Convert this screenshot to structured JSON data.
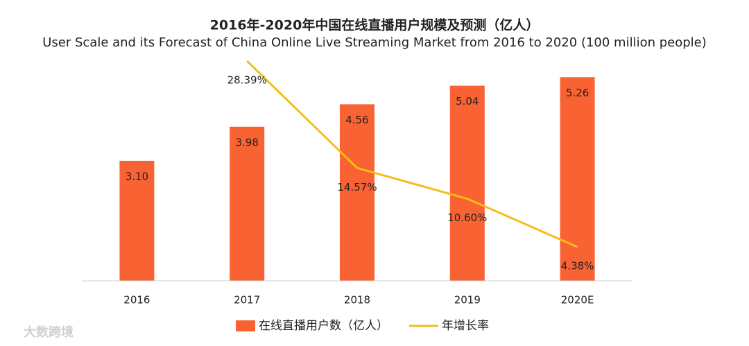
{
  "chart_data": {
    "type": "bar_line",
    "title": "2016年-2020年中国在线直播用户规模及预测（亿人）",
    "subtitle": "User Scale and its Forecast of China Online Live Streaming Market from 2016 to 2020 (100 million people)",
    "categories": [
      "2016",
      "2017",
      "2018",
      "2019",
      "2020E"
    ],
    "series": [
      {
        "name": "在线直播用户数（亿人）",
        "type": "bar",
        "color": "#f96232",
        "values": [
          3.1,
          3.98,
          4.56,
          5.04,
          5.26
        ],
        "value_labels": [
          "3.10",
          "3.98",
          "4.56",
          "5.04",
          "5.26"
        ]
      },
      {
        "name": "年增长率",
        "type": "line",
        "axis": "y2",
        "color": "#f5bd18",
        "values": [
          null,
          28.39,
          14.57,
          10.6,
          4.38
        ],
        "value_labels": [
          null,
          "28.39%",
          "14.57%",
          "10.60%",
          "4.38%"
        ]
      }
    ],
    "ylim": [
      0,
      6
    ],
    "y2lim": [
      0,
      30
    ],
    "legend": "bottom",
    "watermark": "大数跨境"
  }
}
